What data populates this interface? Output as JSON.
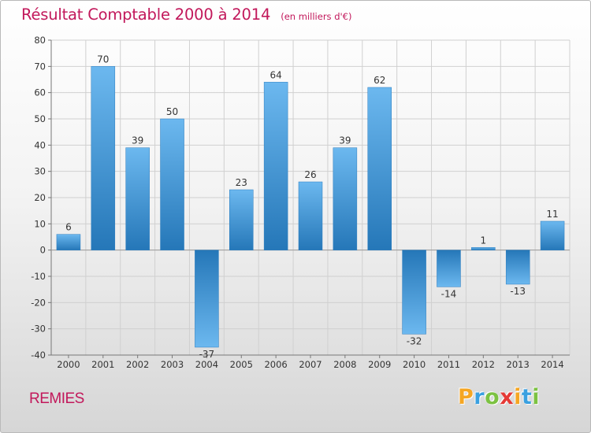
{
  "chart_data": {
    "type": "bar",
    "title": "Résultat Comptable 2000 à 2014",
    "subtitle": "(en milliers d'€)",
    "categories": [
      "2000",
      "2001",
      "2002",
      "2003",
      "2004",
      "2005",
      "2006",
      "2007",
      "2008",
      "2009",
      "2010",
      "2011",
      "2012",
      "2013",
      "2014"
    ],
    "values": [
      6,
      70,
      39,
      50,
      -37,
      23,
      64,
      26,
      39,
      62,
      -32,
      -14,
      1,
      -13,
      11
    ],
    "value_labels": [
      "6",
      "70",
      "39",
      "50",
      "-37",
      "23",
      "64",
      "26",
      "39",
      "62",
      "-32",
      "-14",
      "1",
      "-13",
      "11"
    ],
    "ylim": [
      -40,
      80
    ],
    "yticks": [
      -40,
      -30,
      -20,
      -10,
      0,
      10,
      20,
      30,
      40,
      50,
      60,
      70,
      80
    ],
    "ytick_labels": [
      "-40",
      "-30",
      "-20",
      "-10",
      "0",
      "10",
      "20",
      "30",
      "40",
      "50",
      "60",
      "70",
      "80"
    ],
    "xlabel": "",
    "ylabel": "",
    "grid": true,
    "bar_color": "#3d93d6",
    "bar_color_light": "#6cb8ef",
    "bar_color_dark": "#2577b8"
  },
  "place_name": "REMIES",
  "brand": {
    "letters": [
      "P",
      "r",
      "o",
      "x",
      "i",
      "t",
      "i"
    ],
    "colors": [
      "#f5a623",
      "#3aa0e0",
      "#7cc242",
      "#e53935",
      "#f5a623",
      "#3aa0e0",
      "#7cc242"
    ]
  }
}
